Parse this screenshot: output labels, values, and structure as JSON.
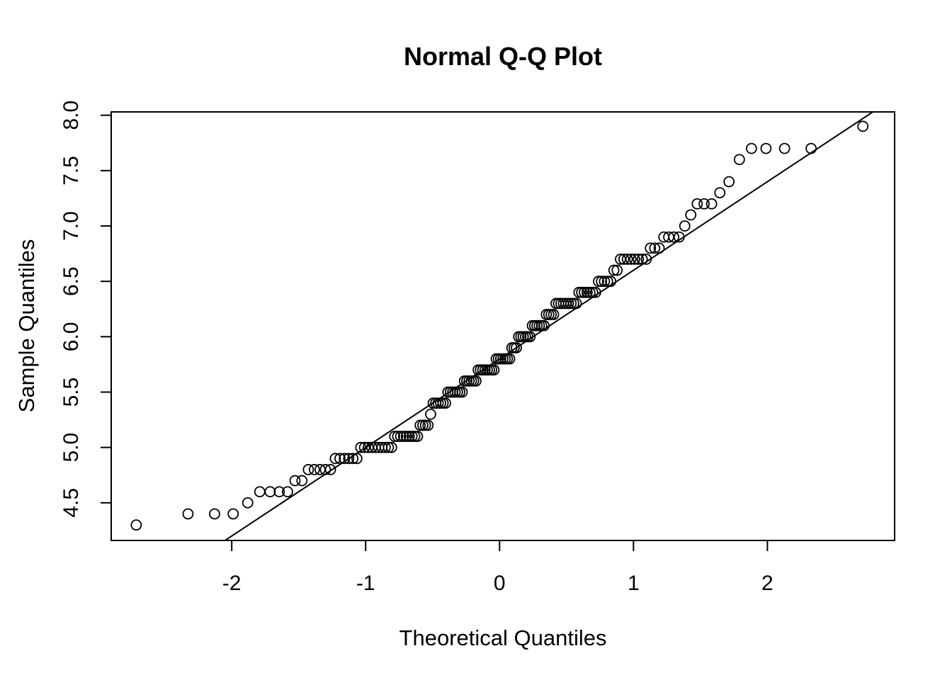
{
  "chart_data": {
    "type": "scatter",
    "title": "Normal Q-Q Plot",
    "xlabel": "Theoretical Quantiles",
    "ylabel": "Sample Quantiles",
    "xlim": [
      -2.9,
      2.95
    ],
    "ylim": [
      4.16,
      8.03
    ],
    "x_ticks": [
      -2,
      -1,
      0,
      1,
      2
    ],
    "x_tick_labels": [
      "-2",
      "-1",
      "0",
      "1",
      "2"
    ],
    "y_ticks": [
      4.5,
      5.0,
      5.5,
      6.0,
      6.5,
      7.0,
      7.5,
      8.0
    ],
    "y_tick_labels": [
      "4.5",
      "5.0",
      "5.5",
      "6.0",
      "6.5",
      "7.0",
      "7.5",
      "8.0"
    ],
    "grid": false,
    "legend": "none",
    "reference_line": {
      "slope": 0.8,
      "intercept": 5.8
    },
    "sample_values": [
      4.3,
      4.4,
      4.4,
      4.4,
      4.5,
      4.6,
      4.6,
      4.6,
      4.6,
      4.7,
      4.7,
      4.8,
      4.8,
      4.8,
      4.8,
      4.8,
      4.9,
      4.9,
      4.9,
      4.9,
      4.9,
      4.9,
      5.0,
      5.0,
      5.0,
      5.0,
      5.0,
      5.0,
      5.0,
      5.0,
      5.0,
      5.0,
      5.1,
      5.1,
      5.1,
      5.1,
      5.1,
      5.1,
      5.1,
      5.1,
      5.1,
      5.2,
      5.2,
      5.2,
      5.2,
      5.3,
      5.4,
      5.4,
      5.4,
      5.4,
      5.4,
      5.4,
      5.5,
      5.5,
      5.5,
      5.5,
      5.5,
      5.5,
      5.5,
      5.6,
      5.6,
      5.6,
      5.6,
      5.6,
      5.6,
      5.7,
      5.7,
      5.7,
      5.7,
      5.7,
      5.7,
      5.7,
      5.7,
      5.8,
      5.8,
      5.8,
      5.8,
      5.8,
      5.8,
      5.8,
      5.9,
      5.9,
      5.9,
      6.0,
      6.0,
      6.0,
      6.0,
      6.0,
      6.0,
      6.1,
      6.1,
      6.1,
      6.1,
      6.1,
      6.1,
      6.2,
      6.2,
      6.2,
      6.2,
      6.3,
      6.3,
      6.3,
      6.3,
      6.3,
      6.3,
      6.3,
      6.3,
      6.3,
      6.4,
      6.4,
      6.4,
      6.4,
      6.4,
      6.4,
      6.4,
      6.5,
      6.5,
      6.5,
      6.5,
      6.5,
      6.6,
      6.6,
      6.7,
      6.7,
      6.7,
      6.7,
      6.7,
      6.7,
      6.7,
      6.7,
      6.8,
      6.8,
      6.8,
      6.9,
      6.9,
      6.9,
      6.9,
      7.0,
      7.1,
      7.2,
      7.2,
      7.2,
      7.3,
      7.4,
      7.6,
      7.7,
      7.7,
      7.7,
      7.7,
      7.9
    ]
  }
}
